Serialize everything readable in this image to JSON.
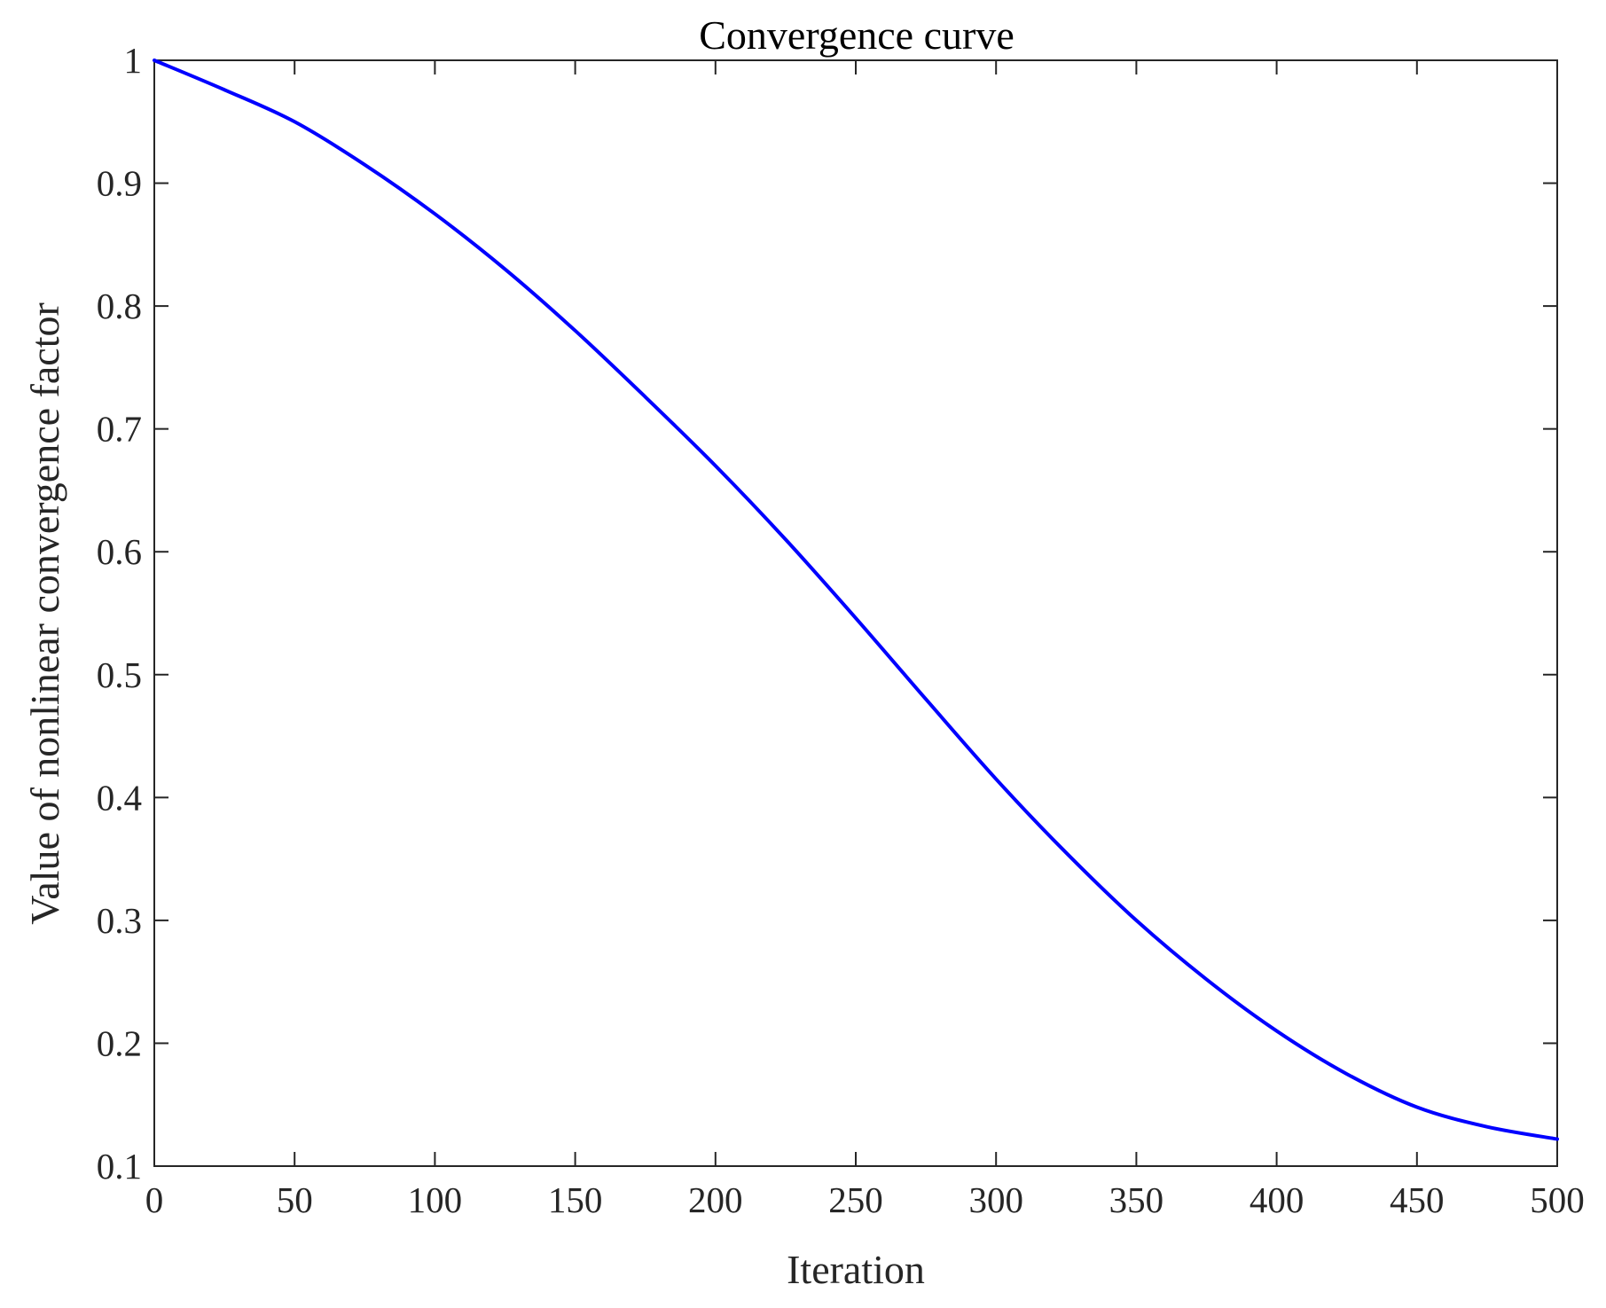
{
  "chart_data": {
    "type": "line",
    "title": "Convergence curve",
    "xlabel": "Iteration",
    "ylabel": "Value of nonlinear convergence factor",
    "xlim": [
      0,
      500
    ],
    "ylim": [
      0.1,
      1
    ],
    "xticks": [
      0,
      50,
      100,
      150,
      200,
      250,
      300,
      350,
      400,
      450,
      500
    ],
    "xtick_labels": [
      "0",
      "50",
      "100",
      "150",
      "200",
      "250",
      "300",
      "350",
      "400",
      "450",
      "500"
    ],
    "yticks": [
      0.1,
      0.2,
      0.3,
      0.4,
      0.5,
      0.6,
      0.7,
      0.8,
      0.9,
      1
    ],
    "ytick_labels": [
      "0.1",
      "0.2",
      "0.3",
      "0.4",
      "0.5",
      "0.6",
      "0.7",
      "0.8",
      "0.9",
      "1"
    ],
    "grid": false,
    "legend": "none",
    "series": [
      {
        "color": "#0000ff",
        "x": [
          0,
          25,
          50,
          75,
          100,
          125,
          150,
          175,
          200,
          225,
          250,
          275,
          300,
          325,
          350,
          375,
          400,
          425,
          450,
          475,
          500
        ],
        "y": [
          1.0,
          0.976,
          0.95,
          0.915,
          0.875,
          0.83,
          0.78,
          0.726,
          0.67,
          0.61,
          0.546,
          0.48,
          0.415,
          0.355,
          0.3,
          0.252,
          0.21,
          0.175,
          0.148,
          0.132,
          0.122
        ]
      }
    ]
  }
}
